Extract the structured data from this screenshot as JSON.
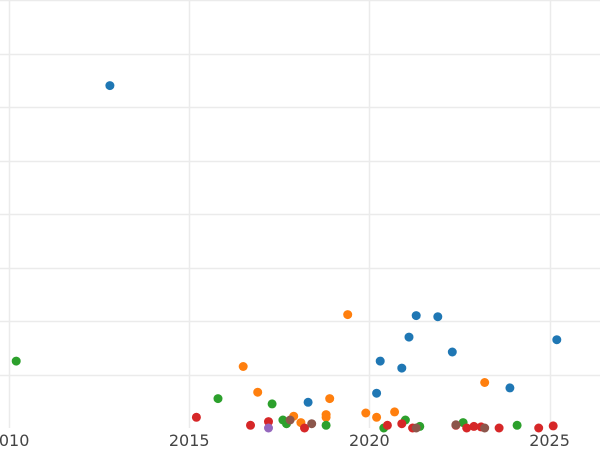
{
  "chart_data": {
    "type": "scatter",
    "title": "",
    "xlabel": "",
    "ylabel": "",
    "xlim": [
      2009.75,
      2026.4
    ],
    "ylim": [
      0,
      8
    ],
    "x_ticks": [
      2010,
      2015,
      2020,
      2025
    ],
    "x_tick_labels": [
      "2010",
      "2015",
      "2020",
      "2025"
    ],
    "y_gridlines": [
      1,
      2,
      3,
      4,
      5,
      6,
      7,
      8
    ],
    "grid": true,
    "legend": "none",
    "series": [
      {
        "color": "#1f77b4",
        "points": [
          {
            "x": 2012.8,
            "y": 6.4
          },
          {
            "x": 2018.3,
            "y": 0.48
          },
          {
            "x": 2020.2,
            "y": 0.65
          },
          {
            "x": 2020.3,
            "y": 1.25
          },
          {
            "x": 2020.9,
            "y": 1.12
          },
          {
            "x": 2021.1,
            "y": 1.7
          },
          {
            "x": 2021.3,
            "y": 2.1
          },
          {
            "x": 2021.9,
            "y": 2.08
          },
          {
            "x": 2022.3,
            "y": 1.42
          },
          {
            "x": 2023.9,
            "y": 0.75
          },
          {
            "x": 2025.2,
            "y": 1.65
          }
        ]
      },
      {
        "color": "#ff7f0e",
        "points": [
          {
            "x": 2016.5,
            "y": 1.15
          },
          {
            "x": 2016.9,
            "y": 0.67
          },
          {
            "x": 2017.9,
            "y": 0.22
          },
          {
            "x": 2018.1,
            "y": 0.1
          },
          {
            "x": 2018.8,
            "y": 0.25
          },
          {
            "x": 2018.9,
            "y": 0.55
          },
          {
            "x": 2018.8,
            "y": 0.2
          },
          {
            "x": 2019.4,
            "y": 2.12
          },
          {
            "x": 2019.9,
            "y": 0.28
          },
          {
            "x": 2020.2,
            "y": 0.2
          },
          {
            "x": 2020.7,
            "y": 0.3
          },
          {
            "x": 2023.2,
            "y": 0.85
          }
        ]
      },
      {
        "color": "#2ca02c",
        "points": [
          {
            "x": 2010.2,
            "y": 1.25
          },
          {
            "x": 2015.8,
            "y": 0.55
          },
          {
            "x": 2017.3,
            "y": 0.45
          },
          {
            "x": 2017.7,
            "y": 0.08
          },
          {
            "x": 2017.6,
            "y": 0.15
          },
          {
            "x": 2018.8,
            "y": 0.05
          },
          {
            "x": 2020.4,
            "y": 0.0
          },
          {
            "x": 2021.0,
            "y": 0.15
          },
          {
            "x": 2021.4,
            "y": 0.03
          },
          {
            "x": 2022.6,
            "y": 0.1
          },
          {
            "x": 2024.1,
            "y": 0.05
          }
        ]
      },
      {
        "color": "#d62728",
        "points": [
          {
            "x": 2015.2,
            "y": 0.2
          },
          {
            "x": 2016.7,
            "y": 0.05
          },
          {
            "x": 2017.2,
            "y": 0.12
          },
          {
            "x": 2018.2,
            "y": 0.0
          },
          {
            "x": 2020.5,
            "y": 0.05
          },
          {
            "x": 2020.9,
            "y": 0.08
          },
          {
            "x": 2021.2,
            "y": 0.0
          },
          {
            "x": 2022.4,
            "y": 0.05
          },
          {
            "x": 2022.7,
            "y": 0.0
          },
          {
            "x": 2022.9,
            "y": 0.03
          },
          {
            "x": 2023.1,
            "y": 0.02
          },
          {
            "x": 2023.6,
            "y": 0.0
          },
          {
            "x": 2024.7,
            "y": 0.0
          },
          {
            "x": 2025.1,
            "y": 0.04
          }
        ]
      },
      {
        "color": "#9467bd",
        "points": [
          {
            "x": 2017.2,
            "y": 0.0
          }
        ]
      },
      {
        "color": "#8c564b",
        "points": [
          {
            "x": 2017.8,
            "y": 0.15
          },
          {
            "x": 2018.4,
            "y": 0.08
          },
          {
            "x": 2021.3,
            "y": 0.0
          },
          {
            "x": 2022.4,
            "y": 0.06
          },
          {
            "x": 2023.2,
            "y": 0.0
          }
        ]
      }
    ]
  }
}
